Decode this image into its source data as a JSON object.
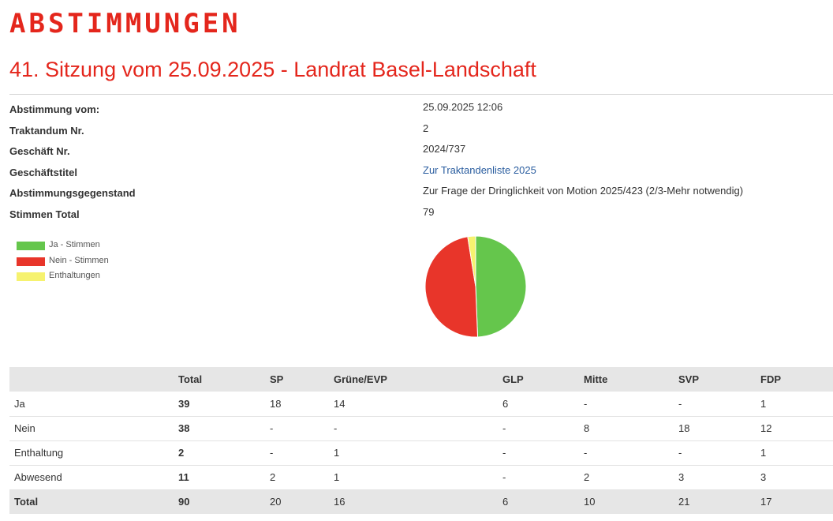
{
  "header": {
    "brand": "ABSTIMMUNGEN",
    "session_title": "41. Sitzung vom 25.09.2025 - Landrat Basel-Landschaft"
  },
  "details": [
    {
      "label": "Abstimmung vom:",
      "value": "25.09.2025 12:06",
      "is_link": false
    },
    {
      "label": "Traktandum Nr.",
      "value": "2",
      "is_link": false
    },
    {
      "label": "Geschäft Nr.",
      "value": "2024/737",
      "is_link": false
    },
    {
      "label": "Geschäftstitel",
      "value": "Zur Traktandenliste 2025",
      "is_link": true
    },
    {
      "label": "Abstimmungsgegenstand",
      "value": "Zur Frage der Dringlichkeit von Motion 2025/423 (2/3-Mehr notwendig)",
      "is_link": false
    },
    {
      "label": "Stimmen Total",
      "value": "79",
      "is_link": false
    }
  ],
  "legend": [
    {
      "label": "Ja - Stimmen",
      "color": "#65c64c"
    },
    {
      "label": "Nein - Stimmen",
      "color": "#e8352a"
    },
    {
      "label": "Enthaltungen",
      "color": "#f6f26f"
    }
  ],
  "chart_data": {
    "type": "pie",
    "categories": [
      "Ja - Stimmen",
      "Nein - Stimmen",
      "Enthaltungen"
    ],
    "values": [
      39,
      38,
      2
    ],
    "colors": [
      "#65c64c",
      "#e8352a",
      "#f6f26f"
    ]
  },
  "table": {
    "columns": [
      "",
      "Total",
      "SP",
      "Grüne/EVP",
      "GLP",
      "Mitte",
      "SVP",
      "FDP"
    ],
    "rows": [
      [
        "Ja",
        "39",
        "18",
        "14",
        "6",
        "-",
        "-",
        "1"
      ],
      [
        "Nein",
        "38",
        "-",
        "-",
        "-",
        "8",
        "18",
        "12"
      ],
      [
        "Enthaltung",
        "2",
        "-",
        "1",
        "-",
        "-",
        "-",
        "1"
      ],
      [
        "Abwesend",
        "11",
        "2",
        "1",
        "-",
        "2",
        "3",
        "3"
      ]
    ],
    "total_row": [
      "Total",
      "90",
      "20",
      "16",
      "6",
      "10",
      "21",
      "17"
    ]
  }
}
